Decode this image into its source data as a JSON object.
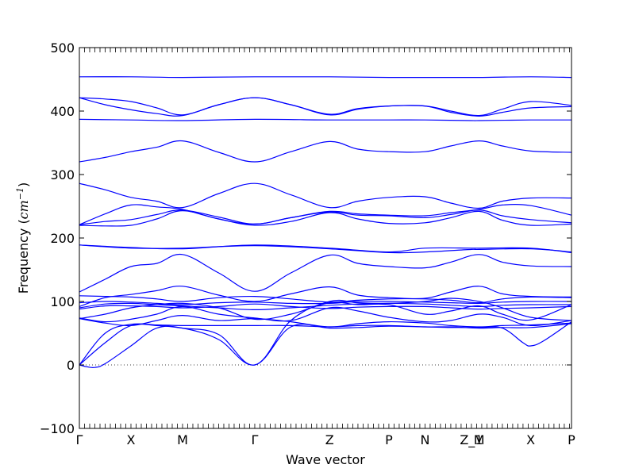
{
  "chart_data": {
    "type": "line",
    "title": "",
    "xlabel": "Wave vector",
    "ylabel_text": "Frequency (",
    "ylabel_unit": "cm",
    "ylabel_exp": "−1",
    "ylabel_close": ")",
    "ylim": [
      -100,
      500
    ],
    "yticks": [
      -100,
      0,
      100,
      200,
      300,
      400,
      500
    ],
    "ytick_labels": [
      "−100",
      "0",
      "100",
      "200",
      "300",
      "400",
      "500"
    ],
    "x_range": [
      0,
      9.54
    ],
    "high_symmetry_points": [
      {
        "label": "Γ",
        "x": 0
      },
      {
        "label": "X",
        "x": 1.0
      },
      {
        "label": "M",
        "x": 2.0
      },
      {
        "label": "Γ",
        "x": 3.4
      },
      {
        "label": "Z",
        "x": 4.85
      },
      {
        "label": "P",
        "x": 6.0
      },
      {
        "label": "N",
        "x": 6.7
      },
      {
        "label": "Z_1",
        "x": 7.6
      },
      {
        "label": "M",
        "x": 7.75
      },
      {
        "label": "X",
        "x": 8.75
      },
      {
        "label": "P",
        "x": 9.54
      }
    ],
    "zero_line": {
      "value": 0,
      "style": "dotted"
    },
    "line_color": "#0000ff",
    "series": [
      {
        "x": [
          0,
          1,
          2,
          3.4,
          4.85,
          6,
          6.7,
          7.6,
          7.75,
          8.75,
          9.54
        ],
        "values": [
          454,
          454,
          453,
          454,
          454,
          453,
          453,
          453,
          453,
          454,
          453
        ]
      },
      {
        "x": [
          0,
          0.5,
          1,
          1.5,
          2,
          2.7,
          3.4,
          4.1,
          4.85,
          5.4,
          6,
          6.7,
          7.2,
          7.75,
          8.2,
          8.75,
          9.54
        ],
        "values": [
          421,
          419,
          415,
          405,
          394,
          410,
          421,
          410,
          395,
          404,
          408,
          408,
          400,
          393,
          403,
          415,
          409
        ]
      },
      {
        "x": [
          0,
          0.5,
          1,
          1.5,
          2,
          2.7,
          3.4,
          4.1,
          4.85,
          5.4,
          6,
          6.7,
          7.2,
          7.75,
          8.2,
          8.75,
          9.54
        ],
        "values": [
          421,
          410,
          402,
          396,
          393,
          410,
          421,
          410,
          394,
          403,
          408,
          408,
          398,
          392,
          398,
          405,
          407
        ]
      },
      {
        "x": [
          0,
          1,
          2,
          3.4,
          4.85,
          6,
          6.7,
          7.6,
          7.75,
          8.75,
          9.54
        ],
        "values": [
          387,
          386,
          385,
          387,
          386,
          386,
          386,
          385,
          385,
          386,
          386
        ]
      },
      {
        "x": [
          0,
          0.5,
          1,
          1.5,
          2,
          2.7,
          3.4,
          4.1,
          4.85,
          5.4,
          6,
          6.7,
          7.2,
          7.75,
          8.2,
          8.75,
          9.54
        ],
        "values": [
          320,
          327,
          336,
          343,
          353,
          335,
          320,
          336,
          352,
          340,
          336,
          336,
          345,
          353,
          345,
          337,
          335
        ]
      },
      {
        "x": [
          0,
          0.5,
          1,
          1.5,
          2,
          2.7,
          3.4,
          4.1,
          4.85,
          5.4,
          6,
          6.7,
          7.2,
          7.75,
          8.2,
          8.75,
          9.54
        ],
        "values": [
          286,
          276,
          264,
          258,
          248,
          270,
          286,
          268,
          248,
          258,
          264,
          265,
          255,
          247,
          258,
          263,
          263
        ]
      },
      {
        "x": [
          0,
          0.5,
          1,
          1.5,
          2,
          2.7,
          3.4,
          4.1,
          4.85,
          5.4,
          6,
          6.7,
          7.2,
          7.75,
          8.2,
          8.75,
          9.54
        ],
        "values": [
          221,
          238,
          252,
          249,
          245,
          230,
          222,
          232,
          242,
          238,
          236,
          235,
          240,
          245,
          252,
          251,
          236
        ]
      },
      {
        "x": [
          0,
          0.5,
          1,
          1.5,
          2,
          2.7,
          3.4,
          4.1,
          4.85,
          5.4,
          6,
          6.7,
          7.2,
          7.75,
          8.2,
          8.75,
          9.54
        ],
        "values": [
          221,
          226,
          229,
          237,
          244,
          233,
          222,
          232,
          241,
          236,
          235,
          232,
          237,
          244,
          235,
          229,
          224
        ]
      },
      {
        "x": [
          0,
          0.5,
          1,
          1.5,
          2,
          2.7,
          3.4,
          4.1,
          4.85,
          5.4,
          6,
          6.7,
          7.2,
          7.75,
          8.2,
          8.75,
          9.54
        ],
        "values": [
          220,
          219,
          220,
          230,
          243,
          230,
          220,
          226,
          240,
          230,
          223,
          224,
          232,
          242,
          228,
          220,
          222
        ]
      },
      {
        "x": [
          0,
          1,
          2,
          3.4,
          4.85,
          6,
          6.7,
          7.6,
          7.75,
          8.75,
          9.54
        ],
        "values": [
          189,
          185,
          183,
          189,
          184,
          178,
          184,
          184,
          184,
          184,
          177
        ]
      },
      {
        "x": [
          0,
          1,
          2,
          3.4,
          4.85,
          6,
          6.7,
          7.6,
          7.75,
          8.75,
          9.54
        ],
        "values": [
          189,
          184,
          184,
          188,
          183,
          177,
          178,
          182,
          182,
          183,
          178
        ]
      },
      {
        "x": [
          0,
          0.5,
          1,
          1.5,
          2,
          2.7,
          3.4,
          4.1,
          4.85,
          5.4,
          6,
          6.7,
          7.2,
          7.75,
          8.2,
          8.75,
          9.54
        ],
        "values": [
          115,
          135,
          155,
          160,
          174,
          145,
          116,
          145,
          173,
          160,
          155,
          153,
          162,
          174,
          162,
          156,
          155
        ]
      },
      {
        "x": [
          0,
          0.5,
          1,
          1.5,
          2,
          2.7,
          3.4,
          4.1,
          4.85,
          5.4,
          6,
          6.7,
          7.2,
          7.75,
          8.2,
          8.75,
          9.54
        ],
        "values": [
          109,
          108,
          107,
          104,
          100,
          106,
          108,
          104,
          99,
          102,
          104,
          104,
          102,
          98,
          104,
          107,
          106
        ]
      },
      {
        "x": [
          0,
          0.5,
          1,
          1.5,
          2,
          2.7,
          3.4,
          4.1,
          4.85,
          5.4,
          6,
          6.7,
          7.2,
          7.75,
          8.2,
          8.75,
          9.54
        ],
        "values": [
          92,
          106,
          111,
          117,
          124,
          110,
          100,
          112,
          123,
          110,
          106,
          105,
          115,
          124,
          112,
          108,
          107
        ]
      },
      {
        "x": [
          0,
          0.5,
          1,
          1.5,
          2,
          2.7,
          3.4,
          4.1,
          4.85,
          5.4,
          6,
          6.7,
          7.2,
          7.75,
          8.2,
          8.75,
          9.54
        ],
        "values": [
          98,
          100,
          99,
          97,
          95,
          98,
          99,
          97,
          97,
          100,
          100,
          99,
          98,
          97,
          99,
          100,
          100
        ]
      },
      {
        "x": [
          0,
          0.5,
          1,
          1.5,
          2,
          2.7,
          3.4,
          4.1,
          4.85,
          5.4,
          6,
          6.7,
          7.2,
          7.75,
          8.2,
          8.75,
          9.54
        ],
        "values": [
          90,
          96,
          97,
          95,
          93,
          90,
          87,
          90,
          94,
          96,
          97,
          96,
          94,
          92,
          94,
          95,
          95
        ]
      },
      {
        "x": [
          0,
          0.5,
          1,
          1.5,
          2,
          2.7,
          3.4,
          4.1,
          4.85,
          5.4,
          6,
          6.7,
          7.2,
          7.75,
          8.2,
          8.75,
          9.54
        ],
        "values": [
          88,
          93,
          93,
          92,
          90,
          92,
          96,
          92,
          89,
          91,
          92,
          92,
          90,
          88,
          89,
          90,
          92
        ]
      },
      {
        "x": [
          0,
          0.5,
          1,
          1.5,
          2,
          2.7,
          3.4,
          4.1,
          4.85,
          5.4,
          6,
          6.7,
          7.2,
          7.75,
          8.2,
          8.75,
          9.54
        ],
        "values": [
          73,
          80,
          90,
          95,
          97,
          90,
          72,
          80,
          98,
          95,
          95,
          80,
          85,
          93,
          80,
          71,
          95
        ]
      },
      {
        "x": [
          0,
          0.5,
          1,
          1.5,
          2,
          2.7,
          3.4,
          4.1,
          4.85,
          5.4,
          6,
          6.7,
          7.2,
          7.75,
          8.2,
          8.75,
          9.54
        ],
        "values": [
          74,
          68,
          72,
          80,
          92,
          80,
          74,
          70,
          90,
          85,
          75,
          68,
          70,
          80,
          75,
          62,
          70
        ]
      },
      {
        "x": [
          0,
          0.5,
          1,
          1.5,
          2,
          2.7,
          3.4,
          4.1,
          4.85,
          5.4,
          6,
          6.7,
          7.2,
          7.75,
          8.2,
          8.75,
          9.54
        ],
        "values": [
          73,
          66,
          62,
          70,
          78,
          70,
          73,
          68,
          60,
          65,
          68,
          66,
          62,
          60,
          62,
          63,
          66
        ]
      },
      {
        "x": [
          0,
          0.5,
          1,
          1.5,
          2,
          2.7,
          3.4,
          4.1,
          4.85,
          5.4,
          6,
          6.7,
          7.2,
          7.75,
          8.2,
          8.75,
          9.54
        ],
        "values": [
          0,
          50,
          64,
          63,
          62,
          62,
          62,
          62,
          60,
          62,
          62,
          60,
          60,
          58,
          59,
          59,
          65
        ]
      },
      {
        "x": [
          0,
          0.15,
          0.3,
          0.5,
          1,
          1.5,
          2,
          2.7,
          3.4,
          4.1,
          4.85,
          5.4,
          6,
          6.7,
          7.2,
          7.75,
          8.2,
          8.6,
          8.75,
          9.0,
          9.54
        ],
        "values": [
          0,
          -3,
          -4,
          2,
          30,
          58,
          58,
          40,
          0,
          60,
          58,
          59,
          61,
          60,
          59,
          59,
          58,
          35,
          30,
          38,
          68
        ]
      },
      {
        "x": [
          0,
          0.5,
          1,
          1.5,
          2,
          2.7,
          3.4,
          4.1,
          4.85,
          5.4,
          6,
          6.7,
          7.2,
          7.75,
          8.2,
          8.75,
          9.54
        ],
        "values": [
          0,
          35,
          62,
          62,
          58,
          48,
          0,
          70,
          100,
          98,
          97,
          100,
          105,
          100,
          90,
          75,
          70
        ]
      }
    ]
  }
}
